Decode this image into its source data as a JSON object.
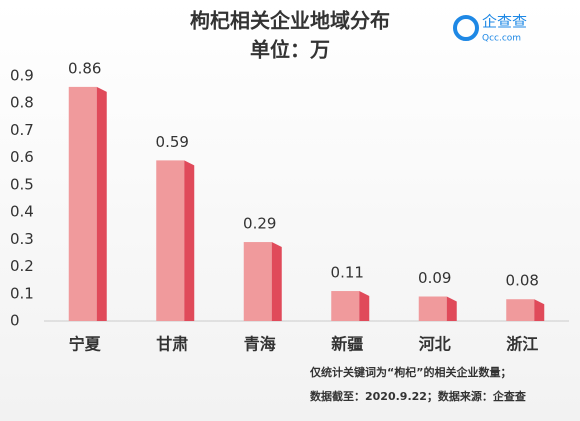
{
  "chart_data": {
    "type": "bar",
    "title": "枸杞相关企业地域分布",
    "subtitle": "单位：万",
    "logo": {
      "name": "企查查",
      "site": "Qcc.com"
    },
    "categories": [
      "宁夏",
      "甘肃",
      "青海",
      "新疆",
      "河北",
      "浙江"
    ],
    "values": [
      0.86,
      0.59,
      0.29,
      0.11,
      0.09,
      0.08
    ],
    "color": "#f09a9c",
    "side_color": "#e04a5a",
    "ylim": [
      0,
      0.9
    ],
    "yticks": [
      0,
      0.1,
      0.2,
      0.3,
      0.4,
      0.5,
      0.6,
      0.7,
      0.8,
      0.9
    ],
    "grid": false,
    "notes": [
      "仅统计关键词为“枸杞”的相关企业数量；",
      "数据截至：2020.9.22；数据来源：企查查"
    ]
  }
}
